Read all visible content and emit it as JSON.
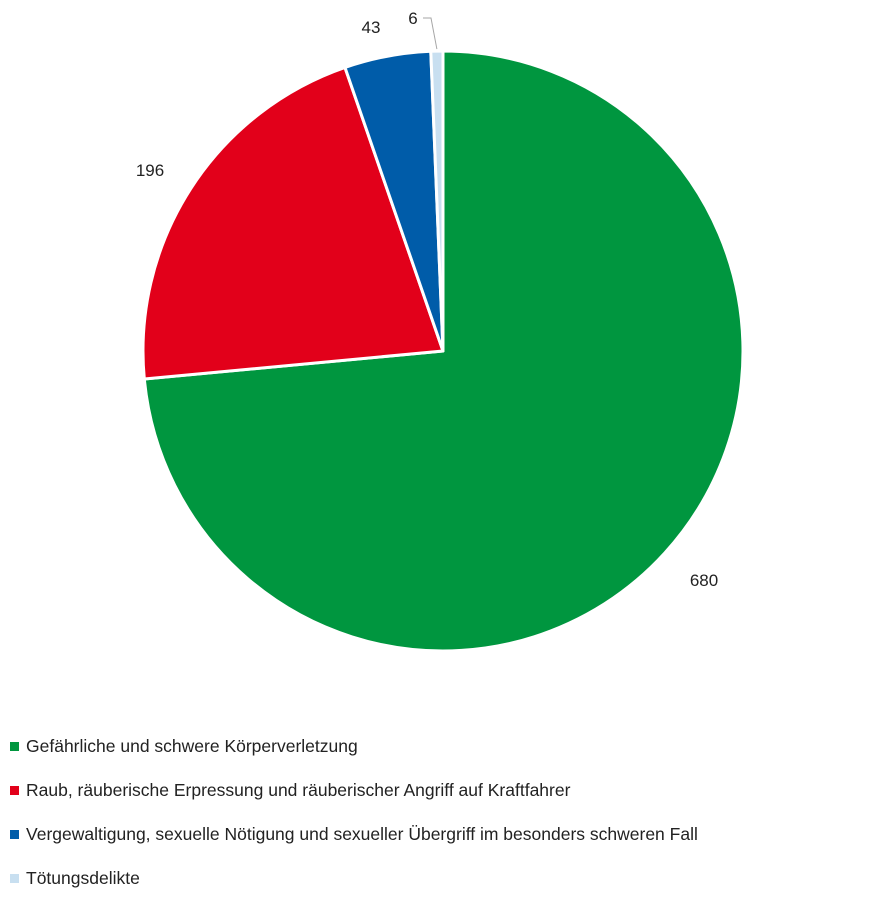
{
  "chart_data": {
    "type": "pie",
    "title": "",
    "categories": [
      "Gefährliche und schwere Körperverletzung",
      "Raub, räuberische Erpressung und räuberischer Angriff auf Kraftfahrer",
      "Vergewaltigung, sexuelle Nötigung und sexueller Übergriff im besonders schweren Fall",
      "Tötungsdelikte"
    ],
    "values": [
      680,
      196,
      43,
      6
    ],
    "colors": [
      "#00963f",
      "#e2001a",
      "#005ca9",
      "#c8dff0"
    ],
    "legend": "bottom-left"
  }
}
